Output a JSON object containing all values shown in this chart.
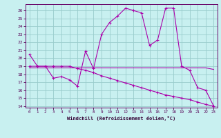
{
  "xlabel": "Windchill (Refroidissement éolien,°C)",
  "bg_color": "#c8f0f0",
  "line_color": "#aa00aa",
  "grid_color": "#99cccc",
  "xlim": [
    -0.5,
    23.5
  ],
  "ylim": [
    13.8,
    26.8
  ],
  "yticks": [
    14,
    15,
    16,
    17,
    18,
    19,
    20,
    21,
    22,
    23,
    24,
    25,
    26
  ],
  "xticks": [
    0,
    1,
    2,
    3,
    4,
    5,
    6,
    7,
    8,
    9,
    10,
    11,
    12,
    13,
    14,
    15,
    16,
    17,
    18,
    19,
    20,
    21,
    22,
    23
  ],
  "line1_x": [
    0,
    1,
    2,
    3,
    4,
    5,
    6,
    7,
    8,
    9,
    10,
    11,
    12,
    13,
    14,
    15,
    16,
    17,
    18,
    19,
    20,
    21,
    22,
    23
  ],
  "line1_y": [
    20.5,
    19.0,
    19.0,
    17.5,
    17.7,
    17.3,
    16.5,
    20.9,
    18.7,
    23.0,
    24.5,
    25.3,
    26.3,
    26.0,
    25.7,
    21.6,
    22.3,
    26.3,
    26.3,
    19.0,
    18.5,
    16.3,
    16.0,
    14.0
  ],
  "line2_x": [
    0,
    1,
    2,
    3,
    4,
    5,
    6,
    7,
    8,
    9,
    10,
    11,
    12,
    13,
    14,
    15,
    16,
    17,
    18,
    19,
    20,
    21,
    22,
    23
  ],
  "line2_y": [
    18.8,
    18.8,
    18.8,
    18.8,
    18.8,
    18.8,
    18.8,
    18.8,
    18.8,
    18.8,
    18.8,
    18.8,
    18.8,
    18.8,
    18.8,
    18.8,
    18.8,
    18.8,
    18.8,
    18.8,
    18.8,
    18.8,
    18.8,
    18.6
  ],
  "line3_x": [
    0,
    1,
    2,
    3,
    4,
    5,
    6,
    7,
    8,
    9,
    10,
    11,
    12,
    13,
    14,
    15,
    16,
    17,
    18,
    19,
    20,
    21,
    22,
    23
  ],
  "line3_y": [
    19.0,
    19.0,
    19.0,
    19.0,
    19.0,
    19.0,
    18.7,
    18.5,
    18.2,
    17.8,
    17.5,
    17.2,
    16.9,
    16.6,
    16.3,
    16.0,
    15.7,
    15.4,
    15.2,
    15.0,
    14.8,
    14.5,
    14.2,
    14.0
  ]
}
